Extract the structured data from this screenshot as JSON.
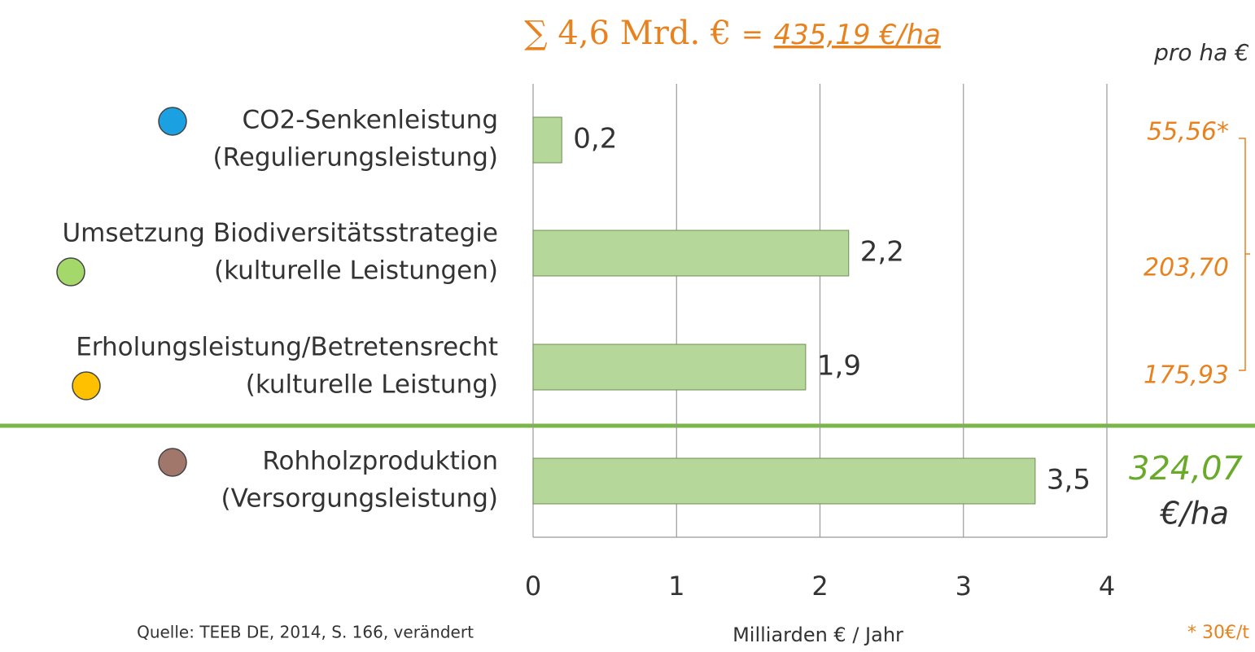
{
  "chart_data": {
    "type": "bar",
    "orientation": "horizontal",
    "title": {
      "sum": "∑ 4,6 Mrd. €",
      "equals": "=",
      "per_ha": "435,19 €/ha"
    },
    "categories": [
      [
        "CO2-Senkenleistung",
        "(Regulierungsleistung)"
      ],
      [
        "Umsetzung Biodiversitätsstrategie",
        "(kulturelle Leistungen)"
      ],
      [
        "Erholungsleistung/Betretensrecht",
        "(kulturelle Leistung)"
      ],
      [
        "Rohholzproduktion",
        "(Versorgungsleistung)"
      ]
    ],
    "dot_colors": [
      "#1ba1e2",
      "#a5d86b",
      "#ffc000",
      "#a0776a"
    ],
    "values": [
      0.2,
      2.2,
      1.9,
      3.5
    ],
    "value_labels": [
      "0,2",
      "2,2",
      "1,9",
      "3,5"
    ],
    "color": "#b5d79a",
    "xlim": [
      0,
      4
    ],
    "xticks": [
      0,
      1,
      2,
      3,
      4
    ],
    "grid": true,
    "xlabel": "Milliarden € / Jahr",
    "per_ha_header": "pro ha €",
    "per_ha": [
      "55,56*",
      "203,70",
      "175,93",
      "324,07"
    ],
    "per_ha_unit": "€/ha",
    "source": "Quelle: TEEB DE, 2014, S. 166, verändert",
    "footnote": "* 30€/t"
  }
}
